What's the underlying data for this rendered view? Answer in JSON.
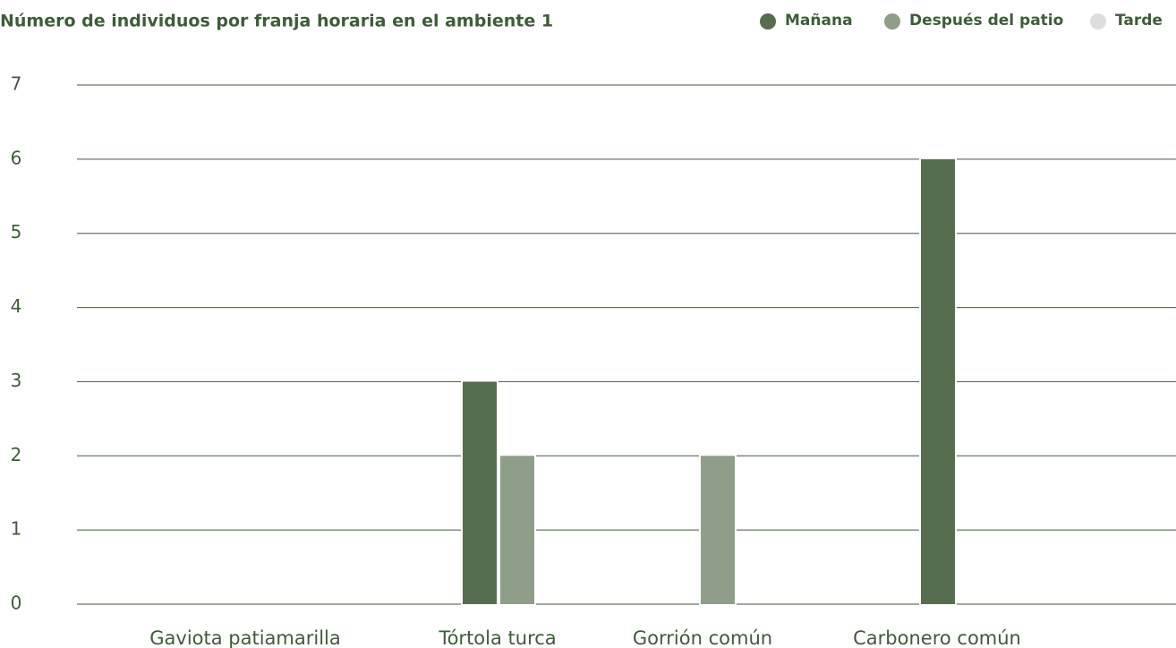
{
  "chart_data": {
    "type": "bar",
    "title": "Número de individuos por franja horaria en el ambiente 1",
    "categories": [
      "Gaviota patiamarilla",
      "Tórtola turca",
      "Gorrión común",
      "Carbonero común"
    ],
    "series": [
      {
        "name": "Mañana",
        "color": "#566d4f",
        "values": [
          0,
          3,
          0,
          6
        ]
      },
      {
        "name": "Después del patio",
        "color": "#8f9e89",
        "values": [
          0,
          2,
          2,
          0
        ]
      },
      {
        "name": "Tarde",
        "color": "#dcdedb",
        "values": [
          0,
          0,
          0,
          0
        ]
      }
    ],
    "ylim": [
      0,
      7
    ],
    "yticks": [
      0,
      1,
      2,
      3,
      4,
      5,
      6,
      7
    ],
    "grid": true,
    "legend": "top-right"
  }
}
